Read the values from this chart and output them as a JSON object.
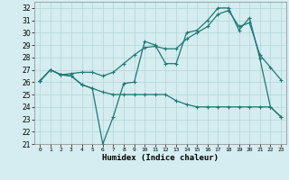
{
  "xlabel": "Humidex (Indice chaleur)",
  "xlim": [
    -0.5,
    23.5
  ],
  "ylim": [
    21,
    32.5
  ],
  "xticks": [
    0,
    1,
    2,
    3,
    4,
    5,
    6,
    7,
    8,
    9,
    10,
    11,
    12,
    13,
    14,
    15,
    16,
    17,
    18,
    19,
    20,
    21,
    22,
    23
  ],
  "yticks": [
    21,
    22,
    23,
    24,
    25,
    26,
    27,
    28,
    29,
    30,
    31,
    32
  ],
  "bg_color": "#d5edf0",
  "line_color": "#1e7873",
  "grid_color": "#b8d8db",
  "line1_y": [
    26.1,
    27.0,
    26.6,
    26.5,
    25.8,
    25.5,
    21.0,
    23.2,
    25.9,
    26.0,
    29.3,
    29.0,
    27.5,
    27.5,
    30.0,
    30.2,
    31.0,
    32.0,
    32.0,
    30.2,
    31.2,
    27.9,
    24.0,
    23.2
  ],
  "line2_y": [
    26.1,
    27.0,
    26.6,
    26.5,
    25.8,
    25.5,
    25.2,
    25.0,
    25.0,
    25.0,
    25.0,
    25.0,
    25.0,
    24.5,
    24.2,
    24.0,
    24.0,
    24.0,
    24.0,
    24.0,
    24.0,
    24.0,
    24.0,
    23.2
  ],
  "line3_y": [
    26.1,
    27.0,
    26.6,
    26.7,
    26.8,
    26.8,
    26.5,
    26.8,
    27.5,
    28.2,
    28.8,
    28.9,
    28.7,
    28.7,
    29.5,
    30.0,
    30.5,
    31.5,
    31.8,
    30.5,
    30.8,
    28.2,
    27.2,
    26.2
  ]
}
